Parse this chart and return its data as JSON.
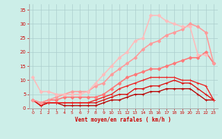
{
  "xlabel": "Vent moyen/en rafales ( km/h )",
  "xlim": [
    -0.5,
    23.5
  ],
  "ylim": [
    0,
    37
  ],
  "yticks": [
    0,
    5,
    10,
    15,
    20,
    25,
    30,
    35
  ],
  "xticks": [
    0,
    1,
    2,
    3,
    4,
    5,
    6,
    7,
    8,
    9,
    10,
    11,
    12,
    13,
    14,
    15,
    16,
    17,
    18,
    19,
    20,
    21,
    22,
    23
  ],
  "background_color": "#cceee8",
  "grid_color": "#aacccc",
  "curves": [
    {
      "x": [
        0,
        1,
        2,
        3,
        4,
        5,
        6,
        7,
        8,
        9,
        10,
        11,
        12,
        13,
        14,
        15,
        16,
        17,
        18,
        19,
        20,
        21,
        22,
        23
      ],
      "y": [
        3,
        1,
        2,
        2,
        1,
        1,
        1,
        1,
        1,
        2,
        3,
        3,
        4,
        5,
        5,
        6,
        6,
        7,
        7,
        7,
        7,
        5,
        3,
        3
      ],
      "color": "#bb0000",
      "linewidth": 1.0,
      "marker": "+",
      "markersize": 3
    },
    {
      "x": [
        0,
        1,
        2,
        3,
        4,
        5,
        6,
        7,
        8,
        9,
        10,
        11,
        12,
        13,
        14,
        15,
        16,
        17,
        18,
        19,
        20,
        21,
        22,
        23
      ],
      "y": [
        3,
        1,
        2,
        2,
        2,
        2,
        2,
        2,
        2,
        3,
        4,
        5,
        5,
        7,
        7,
        8,
        8,
        9,
        10,
        9,
        9,
        7,
        5,
        3
      ],
      "color": "#dd1111",
      "linewidth": 1.0,
      "marker": "+",
      "markersize": 3
    },
    {
      "x": [
        0,
        1,
        2,
        3,
        4,
        5,
        6,
        7,
        8,
        9,
        10,
        11,
        12,
        13,
        14,
        15,
        16,
        17,
        18,
        19,
        20,
        21,
        22,
        23
      ],
      "y": [
        3,
        2,
        2,
        2,
        2,
        2,
        2,
        2,
        3,
        4,
        5,
        7,
        8,
        9,
        10,
        11,
        11,
        11,
        11,
        10,
        10,
        9,
        8,
        3
      ],
      "color": "#ee2222",
      "linewidth": 1.0,
      "marker": "+",
      "markersize": 3
    },
    {
      "x": [
        0,
        1,
        2,
        3,
        4,
        5,
        6,
        7,
        8,
        9,
        10,
        11,
        12,
        13,
        14,
        15,
        16,
        17,
        18,
        19,
        20,
        21,
        22,
        23
      ],
      "y": [
        3,
        2,
        3,
        3,
        4,
        4,
        4,
        4,
        4,
        5,
        7,
        9,
        11,
        12,
        13,
        14,
        14,
        15,
        16,
        17,
        18,
        18,
        20,
        16
      ],
      "color": "#ff7777",
      "linewidth": 1.2,
      "marker": "D",
      "markersize": 2.5
    },
    {
      "x": [
        0,
        1,
        2,
        3,
        4,
        5,
        6,
        7,
        8,
        9,
        10,
        11,
        12,
        13,
        14,
        15,
        16,
        17,
        18,
        19,
        20,
        21,
        22,
        23
      ],
      "y": [
        3,
        2,
        3,
        4,
        5,
        6,
        6,
        6,
        8,
        9,
        12,
        14,
        16,
        18,
        21,
        23,
        24,
        26,
        27,
        28,
        30,
        29,
        27,
        16
      ],
      "color": "#ff9999",
      "linewidth": 1.2,
      "marker": "D",
      "markersize": 2.5
    },
    {
      "x": [
        0,
        1,
        2,
        3,
        4,
        5,
        6,
        7,
        8,
        9,
        10,
        11,
        12,
        13,
        14,
        15,
        16,
        17,
        18,
        19,
        20,
        21,
        22,
        23
      ],
      "y": [
        11,
        6,
        6,
        5,
        5,
        5,
        5,
        6,
        9,
        12,
        15,
        18,
        20,
        24,
        25,
        33,
        33,
        31,
        30,
        29,
        29,
        19,
        19,
        null
      ],
      "color": "#ffbbbb",
      "linewidth": 1.2,
      "marker": "D",
      "markersize": 2.5
    }
  ]
}
